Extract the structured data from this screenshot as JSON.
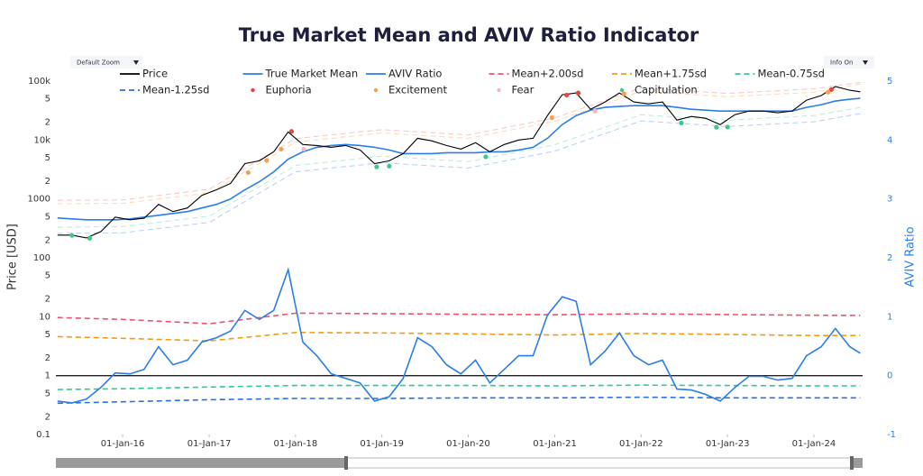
{
  "ui": {
    "zoom_menu": "Default Zoom",
    "info_menu": "Info On"
  },
  "chart_data": {
    "type": "line",
    "title": "True Market Mean and AVIV Ratio Indicator",
    "y_label": "Price [USD]",
    "y2_label": "AVIV Ratio",
    "log_y": true,
    "grid": false,
    "xlim": [
      "2015-03-25",
      "2024-07-25"
    ],
    "xticks": [
      {
        "value": "2016-01-01",
        "label": "01-Jan-16"
      },
      {
        "value": "2017-01-01",
        "label": "01-Jan-17"
      },
      {
        "value": "2018-01-01",
        "label": "01-Jan-18"
      },
      {
        "value": "2019-01-01",
        "label": "01-Jan-19"
      },
      {
        "value": "2020-01-01",
        "label": "01-Jan-20"
      },
      {
        "value": "2021-01-01",
        "label": "01-Jan-21"
      },
      {
        "value": "2022-01-01",
        "label": "01-Jan-22"
      },
      {
        "value": "2023-01-01",
        "label": "01-Jan-23"
      },
      {
        "value": "2024-01-01",
        "label": "01-Jan-24"
      }
    ],
    "ylim": [
      0.1,
      100000
    ],
    "yticks": [
      0.1,
      {
        "value": 0.2,
        "label": "2"
      },
      {
        "value": 0.5,
        "label": "5"
      },
      1,
      {
        "value": 2,
        "label": "2"
      },
      {
        "value": 5,
        "label": "5"
      },
      10,
      {
        "value": 20,
        "label": "2"
      },
      {
        "value": 50,
        "label": "5"
      },
      100,
      {
        "value": 200,
        "label": "2"
      },
      {
        "value": 500,
        "label": "5"
      },
      1000,
      {
        "value": 2000,
        "label": "2"
      },
      {
        "value": 5000,
        "label": "5"
      },
      {
        "value": 10000,
        "label": "10k"
      },
      {
        "value": 20000,
        "label": "2"
      },
      {
        "value": 50000,
        "label": "5"
      },
      {
        "value": 100000,
        "label": "100k"
      }
    ],
    "y2lim": [
      -1,
      5
    ],
    "y2ticks": [
      -1,
      0,
      1,
      2,
      3,
      4,
      5
    ],
    "hline": 1,
    "x": [
      "2015-04-01",
      "2015-06-01",
      "2015-08-01",
      "2015-10-01",
      "2015-12-01",
      "2016-02-01",
      "2016-04-01",
      "2016-06-01",
      "2016-08-01",
      "2016-10-01",
      "2016-12-01",
      "2017-02-01",
      "2017-04-01",
      "2017-06-01",
      "2017-08-01",
      "2017-10-01",
      "2017-12-01",
      "2018-02-01",
      "2018-04-01",
      "2018-06-01",
      "2018-08-01",
      "2018-10-01",
      "2018-12-01",
      "2019-02-01",
      "2019-04-01",
      "2019-06-01",
      "2019-08-01",
      "2019-10-01",
      "2019-12-01",
      "2020-02-01",
      "2020-04-01",
      "2020-06-01",
      "2020-08-01",
      "2020-10-01",
      "2020-12-01",
      "2021-02-01",
      "2021-04-01",
      "2021-06-01",
      "2021-08-01",
      "2021-10-01",
      "2021-12-01",
      "2022-02-01",
      "2022-04-01",
      "2022-06-01",
      "2022-08-01",
      "2022-10-01",
      "2022-12-01",
      "2023-02-01",
      "2023-04-01",
      "2023-06-01",
      "2023-08-01",
      "2023-10-01",
      "2023-12-01",
      "2024-02-01",
      "2024-04-01",
      "2024-06-01",
      "2024-07-15"
    ],
    "series": [
      {
        "name": "Price",
        "color": "#000000",
        "values": [
          243,
          243,
          218,
          279,
          492,
          443,
          470,
          809,
          609,
          701,
          1150,
          1430,
          1830,
          3980,
          4430,
          6310,
          13700,
          8380,
          8080,
          7530,
          8080,
          6770,
          3980,
          4430,
          5880,
          10700,
          9660,
          8080,
          7010,
          9000,
          6310,
          8380,
          10000,
          10700,
          26000,
          58800,
          63100,
          33300,
          44300,
          63100,
          44300,
          41200,
          44300,
          21800,
          25100,
          23400,
          18300,
          27000,
          31000,
          31000,
          29000,
          31000,
          47500,
          56800,
          80900,
          70100,
          66000
        ]
      },
      {
        "name": "True Market Mean",
        "color": "#2b7de9",
        "values": [
          475,
          459,
          443,
          443,
          443,
          459,
          492,
          528,
          567,
          609,
          701,
          809,
          1000,
          1430,
          1960,
          2890,
          4750,
          6310,
          7530,
          8080,
          8380,
          8080,
          7530,
          6770,
          5880,
          5880,
          5880,
          6090,
          6090,
          6090,
          6310,
          6310,
          6770,
          7530,
          10700,
          18300,
          26000,
          32200,
          35800,
          37100,
          38400,
          38400,
          38400,
          35800,
          33300,
          32200,
          31000,
          31000,
          31000,
          31000,
          31000,
          31000,
          35800,
          39800,
          45900,
          49200,
          51000
        ]
      },
      {
        "name": "AVIV Ratio",
        "color": "#2b7de9",
        "values": [
          0.37,
          0.345,
          0.4,
          0.63,
          1.11,
          1.07,
          1.28,
          3.1,
          1.53,
          1.83,
          3.7,
          4.4,
          5.7,
          12.8,
          9.0,
          12.8,
          63,
          3.7,
          2.18,
          1.07,
          0.9,
          0.75,
          0.37,
          0.44,
          0.9,
          4.4,
          3.1,
          1.53,
          1.07,
          1.83,
          0.75,
          1.28,
          2.18,
          2.18,
          10.7,
          21.8,
          18.3,
          1.53,
          2.6,
          5.3,
          2.18,
          1.53,
          1.83,
          0.59,
          0.57,
          0.48,
          0.37,
          0.63,
          0.97,
          0.97,
          0.84,
          0.9,
          2.18,
          3.1,
          6.3,
          3.1,
          2.4
        ]
      },
      {
        "name": "Mean+2.00sd",
        "color": "#f0506e",
        "dash": true,
        "x": [
          "2015-04-01",
          "2016-01-01",
          "2017-01-01",
          "2018-01-01",
          "2019-01-01",
          "2020-01-01",
          "2021-01-01",
          "2022-01-01",
          "2023-01-01",
          "2024-01-01",
          "2024-07-15"
        ],
        "values": [
          9.7,
          9.0,
          7.6,
          11.5,
          11.3,
          11.0,
          10.8,
          11.2,
          10.9,
          10.6,
          10.5
        ],
        "price_values": [
          950,
          960,
          1460,
          10600,
          15000,
          12200,
          23800,
          76800,
          62000,
          74200,
          95000
        ]
      },
      {
        "name": "Mean+1.75sd",
        "color": "#f39c12",
        "dash": true,
        "x": [
          "2015-04-01",
          "2016-01-01",
          "2017-01-01",
          "2018-01-01",
          "2019-01-01",
          "2020-01-01",
          "2021-01-01",
          "2022-01-01",
          "2023-01-01",
          "2024-01-01",
          "2024-07-15"
        ],
        "values": [
          4.6,
          4.3,
          3.9,
          5.4,
          5.3,
          5.1,
          4.9,
          5.2,
          5.0,
          4.8,
          4.8
        ],
        "price_values": [
          830,
          840,
          1270,
          9200,
          13200,
          10700,
          20800,
          67200,
          54300,
          64900,
          89000
        ]
      },
      {
        "name": "Mean-0.75sd",
        "color": "#2ecc8f",
        "dash": true,
        "x": [
          "2015-04-01",
          "2016-01-01",
          "2017-01-01",
          "2018-01-01",
          "2019-01-01",
          "2020-01-01",
          "2021-01-01",
          "2022-01-01",
          "2023-01-01",
          "2024-01-01",
          "2024-07-15"
        ],
        "values": [
          0.58,
          0.6,
          0.64,
          0.68,
          0.68,
          0.68,
          0.67,
          0.69,
          0.68,
          0.67,
          0.67
        ],
        "price_values": [
          330,
          340,
          510,
          3700,
          5300,
          4300,
          8300,
          26900,
          21700,
          26000,
          35700
        ]
      },
      {
        "name": "Mean-1.25sd",
        "color": "#2b6fe0",
        "dash": true,
        "x": [
          "2015-04-01",
          "2016-01-01",
          "2017-01-01",
          "2018-01-01",
          "2019-01-01",
          "2020-01-01",
          "2021-01-01",
          "2022-01-01",
          "2023-01-01",
          "2024-01-01",
          "2024-07-15"
        ],
        "values": [
          0.34,
          0.36,
          0.39,
          0.41,
          0.41,
          0.42,
          0.42,
          0.43,
          0.42,
          0.42,
          0.42
        ],
        "price_values": [
          260,
          265,
          400,
          2900,
          4100,
          3350,
          6500,
          21100,
          17000,
          20400,
          28000
        ]
      },
      {
        "name": "Euphoria",
        "color": "#e8453c",
        "markers": true,
        "x": [
          "2017-12-15",
          "2021-02-20",
          "2021-04-10",
          "2024-03-15"
        ],
        "values": [
          14000,
          58000,
          63000,
          72000
        ]
      },
      {
        "name": "Excitement",
        "color": "#f5a04c",
        "markers": true,
        "x": [
          "2017-06-15",
          "2017-09-01",
          "2017-11-01",
          "2020-12-20",
          "2021-10-20",
          "2024-03-01"
        ],
        "values": [
          2800,
          4500,
          7000,
          24000,
          61000,
          65000
        ]
      },
      {
        "name": "Fear",
        "color": "#f5b5c5",
        "markers": true,
        "x": [
          "2018-02-05",
          "2021-06-20"
        ],
        "values": [
          7000,
          31000
        ]
      },
      {
        "name": "Capitulation",
        "color": "#3cc98a",
        "markers": true,
        "x": [
          "2015-06-01",
          "2015-08-15",
          "2018-12-10",
          "2019-02-01",
          "2020-03-15",
          "2022-06-20",
          "2022-11-15",
          "2023-01-01"
        ],
        "values": [
          240,
          215,
          3500,
          3600,
          5200,
          19500,
          16500,
          16600
        ]
      }
    ]
  }
}
